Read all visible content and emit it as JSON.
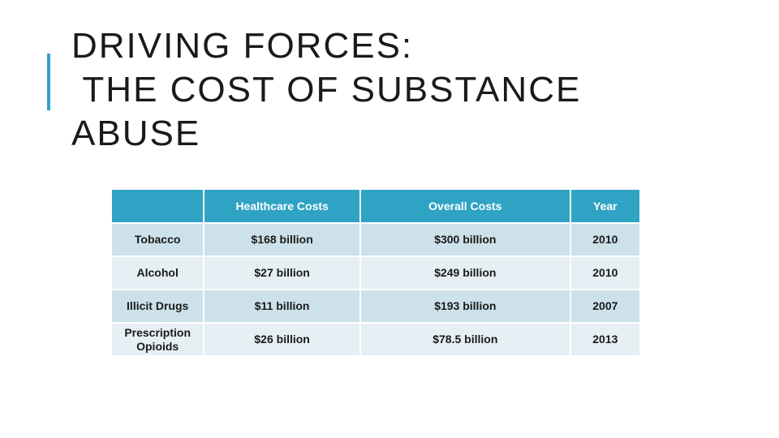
{
  "slide": {
    "title_lines": [
      "DRIVING FORCES:",
      " THE COST OF SUBSTANCE",
      "ABUSE"
    ]
  },
  "table": {
    "headers": [
      "",
      "Healthcare Costs",
      "Overall Costs",
      "Year"
    ],
    "rows": [
      {
        "substance": "Tobacco",
        "healthcare": "$168 billion",
        "overall": "$300 billion",
        "year": "2010"
      },
      {
        "substance": "Alcohol",
        "healthcare": "$27 billion",
        "overall": "$249 billion",
        "year": "2010"
      },
      {
        "substance": "Illicit Drugs",
        "healthcare": "$11 billion",
        "overall": "$193 billion",
        "year": "2007"
      },
      {
        "substance": "Prescription Opioids",
        "healthcare": "$26 billion",
        "overall": "$78.5 billion",
        "year": "2013"
      }
    ]
  },
  "colors": {
    "accent": "#2fa3c4",
    "row_dark": "#cce1ea",
    "row_light": "#e6eff3"
  }
}
